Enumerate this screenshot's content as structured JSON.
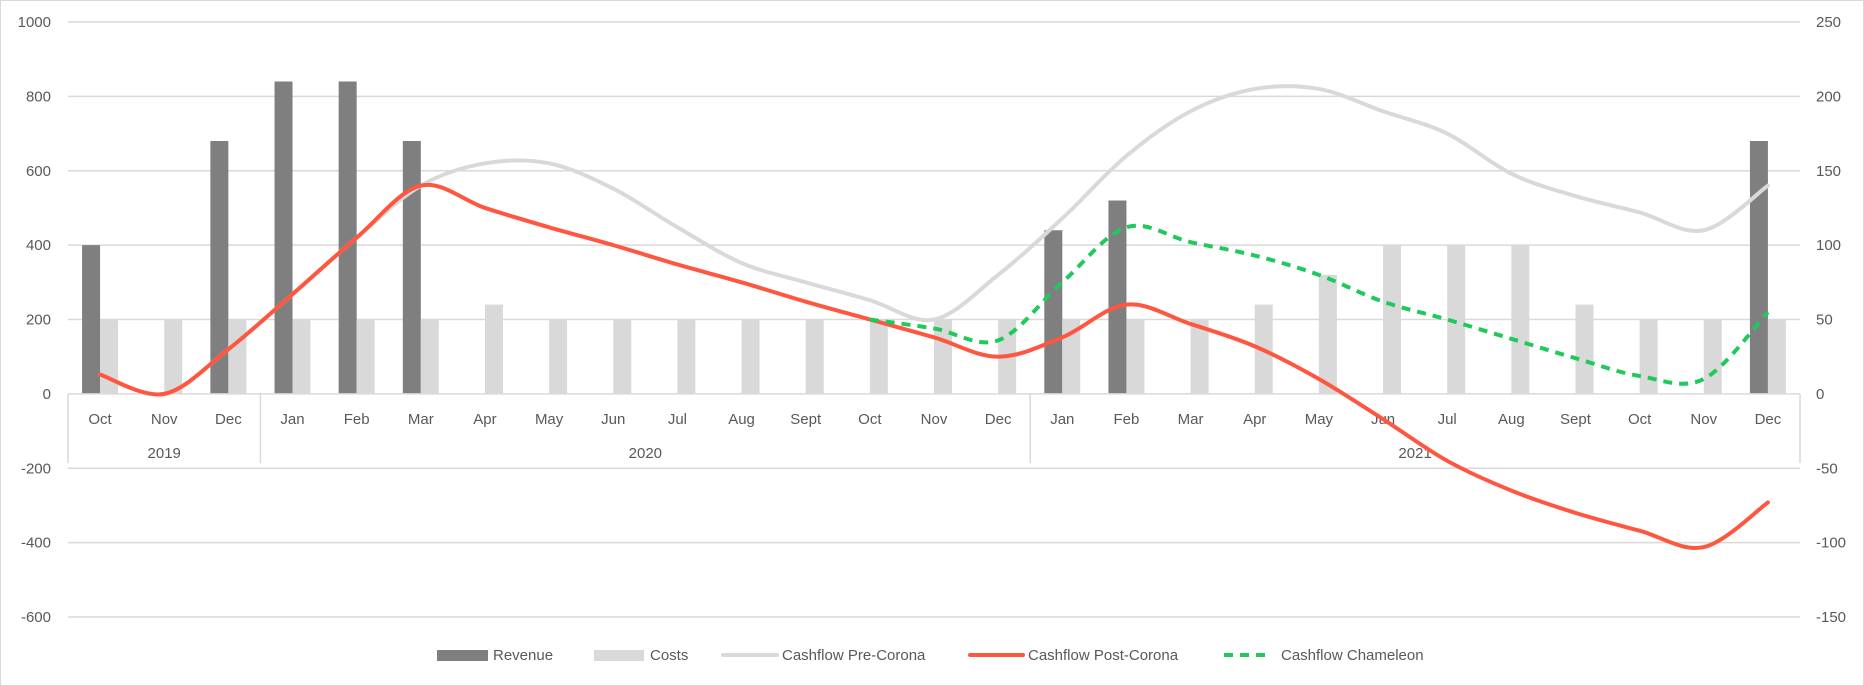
{
  "chart_data": {
    "type": "bar+line",
    "title": "",
    "categories": [
      "Oct",
      "Nov",
      "Dec",
      "Jan",
      "Feb",
      "Mar",
      "Apr",
      "May",
      "Jun",
      "Jul",
      "Aug",
      "Sept",
      "Oct",
      "Nov",
      "Dec",
      "Jan",
      "Feb",
      "Mar",
      "Apr",
      "May",
      "Jun",
      "Jul",
      "Aug",
      "Sept",
      "Oct",
      "Nov",
      "Dec"
    ],
    "year_groups": [
      {
        "label": "2019",
        "count": 3
      },
      {
        "label": "2020",
        "count": 12
      },
      {
        "label": "2021",
        "count": 12
      }
    ],
    "y_left": {
      "min": -600,
      "max": 1000,
      "step": 200,
      "ticks": [
        "1000",
        "800",
        "600",
        "400",
        "200",
        "0",
        "-200",
        "-400",
        "-600"
      ]
    },
    "y_right": {
      "min": -150,
      "max": 250,
      "step": 50,
      "ticks": [
        "250",
        "200",
        "150",
        "100",
        "50",
        "0",
        "-50",
        "-100",
        "-150"
      ]
    },
    "grid": true,
    "legend_position": "bottom",
    "series": [
      {
        "name": "Revenue",
        "type": "bar",
        "axis": "left",
        "color": "#7f7f7f",
        "values": [
          400,
          0,
          680,
          840,
          840,
          680,
          0,
          0,
          0,
          0,
          0,
          0,
          0,
          0,
          0,
          440,
          520,
          0,
          0,
          0,
          0,
          0,
          0,
          0,
          0,
          0,
          680
        ]
      },
      {
        "name": "Costs",
        "type": "bar",
        "axis": "left",
        "color": "#d9d9d9",
        "values": [
          200,
          200,
          200,
          200,
          200,
          200,
          240,
          200,
          200,
          200,
          200,
          200,
          200,
          200,
          200,
          200,
          200,
          200,
          240,
          320,
          400,
          400,
          400,
          240,
          200,
          200,
          200
        ]
      },
      {
        "name": "Cashflow Pre-Corona",
        "type": "line",
        "axis": "right",
        "color": "#d9d9d9",
        "dash": false,
        "values": [
          13,
          0,
          30,
          67,
          105,
          140,
          155,
          155,
          138,
          112,
          88,
          75,
          63,
          50,
          80,
          118,
          160,
          190,
          205,
          205,
          190,
          175,
          148,
          133,
          122,
          110,
          140
        ]
      },
      {
        "name": "Cashflow Post-Corona",
        "type": "line",
        "axis": "right",
        "color": "#ff5640",
        "dash": false,
        "values": [
          13,
          0,
          30,
          67,
          105,
          140,
          125,
          112,
          100,
          87,
          75,
          62,
          50,
          38,
          25,
          38,
          60,
          47,
          32,
          10,
          -17,
          -45,
          -65,
          -80,
          -92,
          -103,
          -73
        ]
      },
      {
        "name": "Cashflow Chameleon",
        "type": "line",
        "axis": "right",
        "color": "#1fc95c",
        "dash": true,
        "values": [
          null,
          null,
          null,
          null,
          null,
          null,
          null,
          null,
          null,
          null,
          null,
          null,
          50,
          44,
          36,
          75,
          112,
          102,
          93,
          80,
          62,
          50,
          37,
          24,
          12,
          10,
          55
        ]
      }
    ]
  }
}
